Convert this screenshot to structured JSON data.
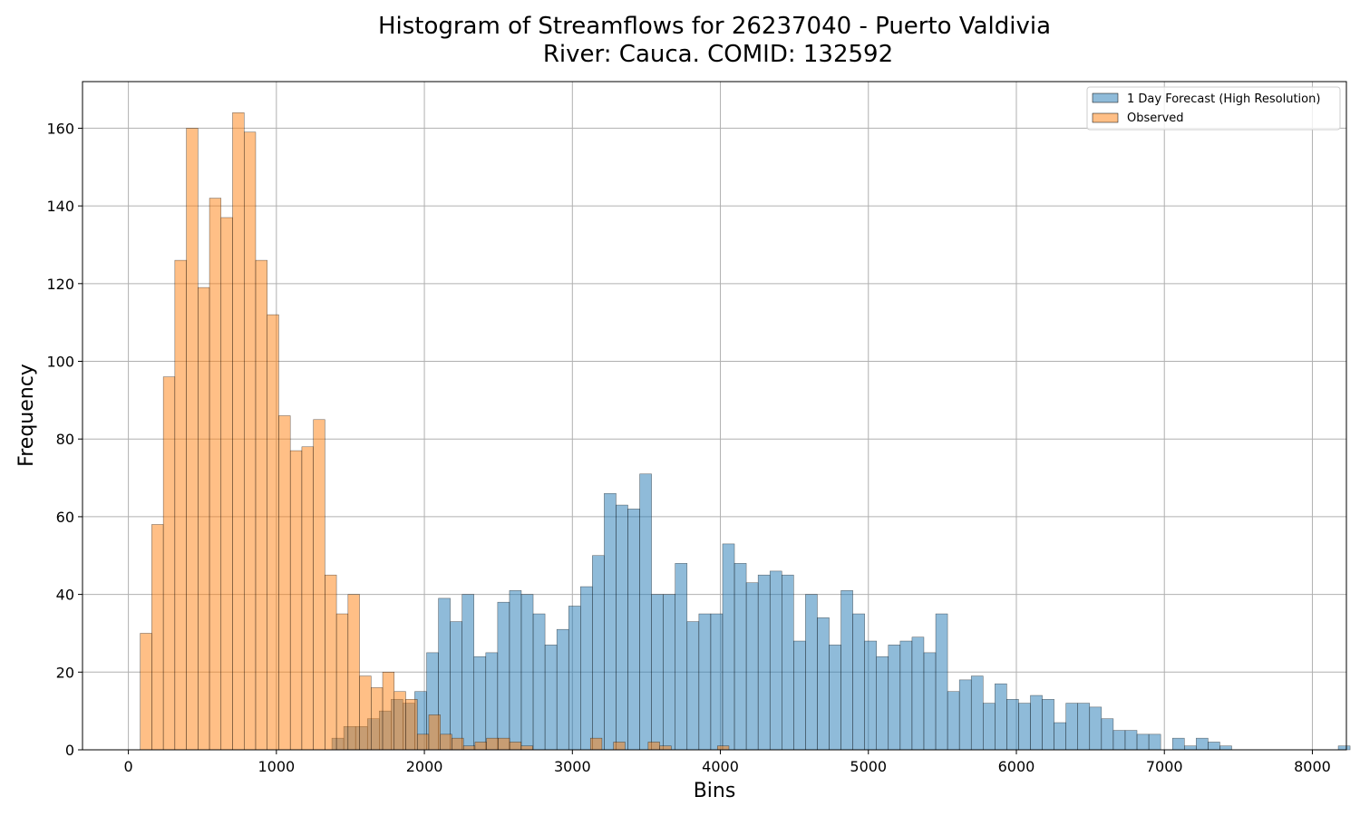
{
  "chart_data": {
    "type": "bar",
    "title_line1": "Histogram of Streamflows for 26237040 - Puerto Valdivia",
    "title_line2": "River: Cauca. COMID: 132592",
    "xlabel": "Bins",
    "ylabel": "Frequency",
    "xlim": [
      -310,
      8230
    ],
    "ylim": [
      0,
      172
    ],
    "xticks": [
      0,
      1000,
      2000,
      3000,
      4000,
      5000,
      6000,
      7000,
      8000
    ],
    "yticks": [
      0,
      20,
      40,
      60,
      80,
      100,
      120,
      140,
      160
    ],
    "grid": true,
    "legend_placement": "top-right",
    "series": [
      {
        "name": "1 Day Forecast (High Resolution)",
        "color": "#1f77b4",
        "bin_start": 1375,
        "bin_width": 80,
        "values": [
          3,
          6,
          6,
          8,
          10,
          13,
          12,
          15,
          25,
          39,
          33,
          40,
          24,
          25,
          38,
          41,
          40,
          35,
          27,
          31,
          37,
          42,
          50,
          66,
          63,
          62,
          71,
          40,
          40,
          48,
          33,
          35,
          35,
          53,
          48,
          43,
          45,
          46,
          45,
          28,
          40,
          34,
          27,
          41,
          35,
          28,
          24,
          27,
          28,
          29,
          25,
          35,
          15,
          18,
          19,
          12,
          17,
          13,
          12,
          14,
          13,
          7,
          12,
          12,
          11,
          8,
          5,
          5,
          4,
          4,
          0,
          3,
          1,
          3,
          2,
          1,
          0,
          0,
          0,
          0,
          0,
          0,
          0,
          0,
          0,
          1
        ]
      },
      {
        "name": "Observed",
        "color": "#ff7f0e",
        "bin_start": 80,
        "bin_width": 78,
        "values": [
          30,
          58,
          96,
          126,
          160,
          119,
          142,
          137,
          164,
          159,
          126,
          112,
          86,
          77,
          78,
          85,
          45,
          35,
          40,
          19,
          16,
          20,
          15,
          13,
          4,
          9,
          4,
          3,
          1,
          2,
          3,
          3,
          2,
          1,
          0,
          0,
          0,
          0,
          0,
          3,
          0,
          2,
          0,
          0,
          2,
          1,
          0,
          0,
          0,
          0,
          1
        ]
      }
    ]
  }
}
